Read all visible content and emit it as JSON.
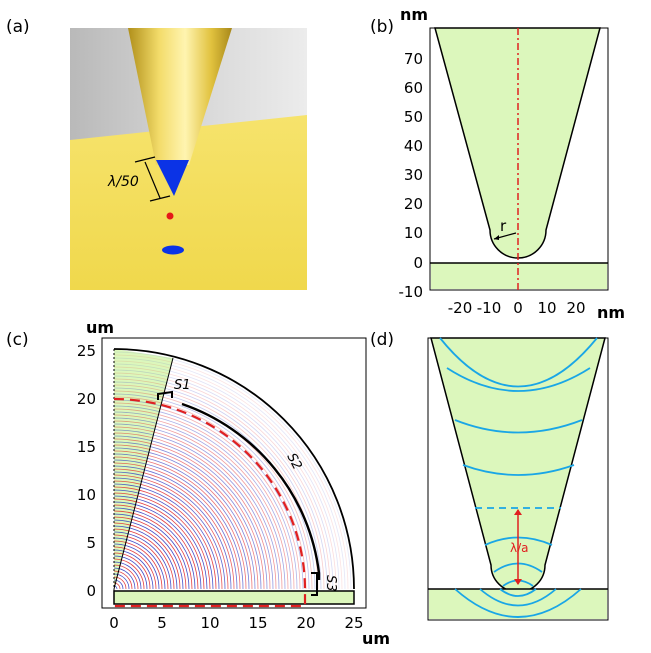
{
  "panels": {
    "a": {
      "label": "(a)",
      "annotation": "λ/50",
      "colors": {
        "background": "#f2e05a",
        "tip": "#e0c43a",
        "apex": "#0b33e6",
        "dot_red": "#e51818",
        "dot_blue": "#0b33e6"
      }
    },
    "b": {
      "label": "(b)",
      "y_unit": "nm",
      "x_unit": "nm",
      "radius_label": "r",
      "y_ticks": [
        "70",
        "60",
        "50",
        "40",
        "30",
        "20",
        "10",
        "0",
        "-10"
      ],
      "x_ticks": [
        "-20",
        "-10",
        "0",
        "10",
        "20"
      ],
      "colors": {
        "fill": "#dcf7bc",
        "axis_line": "#e02020"
      }
    },
    "c": {
      "label": "(c)",
      "y_unit": "um",
      "x_unit": "um",
      "segment_labels": [
        "S1",
        "S2",
        "S3"
      ],
      "y_ticks": [
        "25",
        "20",
        "15",
        "10",
        "5",
        "0"
      ],
      "x_ticks": [
        "0",
        "5",
        "10",
        "15",
        "20",
        "25"
      ],
      "colors": {
        "fill": "#dcf7bc",
        "dashed": "#e02020",
        "fringe_red": "#e02020",
        "fringe_blue": "#2030c0"
      }
    },
    "d": {
      "label": "(d)",
      "wavelength_label": "λ/a",
      "colors": {
        "fill": "#dcf7bc",
        "field_lines": "#1aa6e6",
        "marker": "#e02020"
      }
    }
  }
}
